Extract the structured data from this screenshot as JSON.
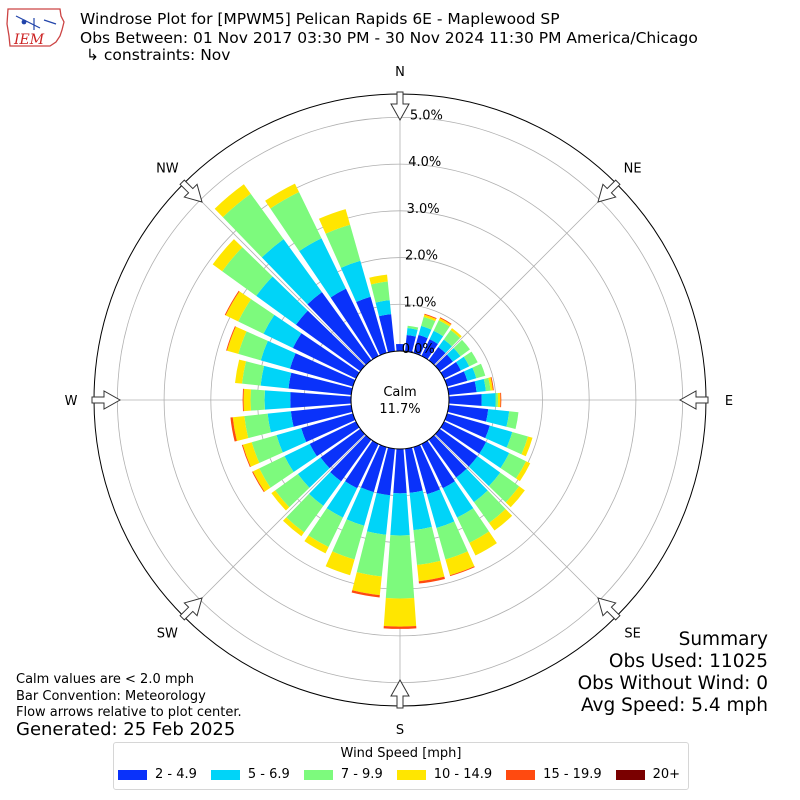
{
  "header": {
    "logo_text": "IEM",
    "title_line1": "Windrose Plot for [MPWM5] Pelican Rapids 6E - Maplewood SP",
    "title_line2": "Obs Between: 01 Nov 2017 03:30 PM - 30 Nov 2024 11:30 PM America/Chicago",
    "title_line3": "↳ constraints: Nov"
  },
  "chart_data": {
    "type": "windrose",
    "directions_deg": [
      0,
      10,
      20,
      30,
      40,
      50,
      60,
      70,
      80,
      90,
      100,
      110,
      120,
      130,
      140,
      150,
      160,
      170,
      180,
      190,
      200,
      210,
      220,
      230,
      240,
      250,
      260,
      270,
      280,
      290,
      300,
      310,
      320,
      330,
      340,
      350
    ],
    "compass_labels": [
      "N",
      "NE",
      "E",
      "SE",
      "S",
      "SW",
      "W",
      "NW"
    ],
    "radial_ticks": [
      "0.0%",
      "1.0%",
      "2.0%",
      "3.0%",
      "4.0%",
      "5.0%"
    ],
    "radial_max": 5.5,
    "calm_label": "Calm",
    "calm_value": "11.7%",
    "speed_bins": [
      "2 - 4.9",
      "5 - 6.9",
      "7 - 9.9",
      "10 - 14.9",
      "15 - 19.9",
      "20+"
    ],
    "bin_colors": [
      "#0a32fa",
      "#00d4f8",
      "#7dfa7d",
      "#ffe600",
      "#ff4a10",
      "#7a0000"
    ],
    "legend_title": "Wind Speed [mph]",
    "series": [
      {
        "name": "2 - 4.9",
        "values": [
          0.15,
          0.35,
          0.4,
          0.4,
          0.35,
          0.35,
          0.4,
          0.45,
          0.6,
          0.7,
          0.85,
          0.95,
          1.0,
          1.0,
          1.0,
          1.05,
          1.05,
          0.95,
          0.95,
          1.0,
          1.0,
          1.05,
          1.1,
          1.05,
          1.1,
          1.15,
          1.3,
          1.3,
          1.35,
          1.4,
          1.5,
          1.7,
          1.8,
          1.6,
          1.25,
          0.8
        ]
      },
      {
        "name": "5 - 6.9",
        "values": [
          0.0,
          0.15,
          0.2,
          0.2,
          0.2,
          0.2,
          0.2,
          0.2,
          0.2,
          0.3,
          0.45,
          0.5,
          0.55,
          0.6,
          0.65,
          0.7,
          0.75,
          0.8,
          0.9,
          0.85,
          0.75,
          0.7,
          0.65,
          0.6,
          0.6,
          0.55,
          0.5,
          0.55,
          0.6,
          0.65,
          0.7,
          1.05,
          1.4,
          1.2,
          0.8,
          0.3
        ]
      },
      {
        "name": "7 - 9.9",
        "values": [
          0.0,
          0.05,
          0.2,
          0.25,
          0.25,
          0.25,
          0.2,
          0.2,
          0.1,
          0.05,
          0.2,
          0.35,
          0.4,
          0.5,
          0.55,
          0.6,
          0.7,
          0.75,
          1.35,
          0.9,
          0.75,
          0.7,
          0.7,
          0.6,
          0.6,
          0.55,
          0.5,
          0.3,
          0.4,
          0.5,
          0.6,
          0.9,
          1.2,
          1.1,
          0.8,
          0.4
        ]
      },
      {
        "name": "10 - 14.9",
        "values": [
          0.0,
          0.0,
          0.05,
          0.05,
          0.05,
          0.0,
          0.0,
          0.0,
          0.05,
          0.05,
          0.0,
          0.1,
          0.1,
          0.15,
          0.2,
          0.3,
          0.35,
          0.35,
          0.6,
          0.4,
          0.35,
          0.15,
          0.1,
          0.1,
          0.15,
          0.2,
          0.25,
          0.15,
          0.15,
          0.25,
          0.3,
          0.25,
          0.25,
          0.2,
          0.35,
          0.15
        ]
      },
      {
        "name": "15 - 19.9",
        "values": [
          0.0,
          0.0,
          0.02,
          0.02,
          0.0,
          0.0,
          0.0,
          0.0,
          0.02,
          0.02,
          0.0,
          0.0,
          0.0,
          0.0,
          0.0,
          0.0,
          0.02,
          0.05,
          0.05,
          0.05,
          0.0,
          0.0,
          0.0,
          0.0,
          0.02,
          0.02,
          0.05,
          0.02,
          0.0,
          0.02,
          0.02,
          0.0,
          0.0,
          0.0,
          0.0,
          0.0
        ]
      },
      {
        "name": "20+",
        "values": [
          0,
          0,
          0,
          0,
          0,
          0,
          0,
          0,
          0,
          0,
          0,
          0,
          0,
          0,
          0,
          0,
          0,
          0,
          0,
          0,
          0,
          0,
          0,
          0,
          0,
          0,
          0,
          0,
          0,
          0,
          0,
          0,
          0,
          0,
          0,
          0
        ]
      }
    ]
  },
  "notes": {
    "line1": "Calm values are < 2.0 mph",
    "line2": "Bar Convention: Meteorology",
    "line3": "Flow arrows relative to plot center.",
    "generated": "Generated: 25 Feb 2025"
  },
  "summary": {
    "title": "Summary",
    "obs_used": "Obs Used: 11025",
    "obs_without_wind": "Obs Without Wind: 0",
    "avg_speed": "Avg Speed: 5.4 mph"
  }
}
